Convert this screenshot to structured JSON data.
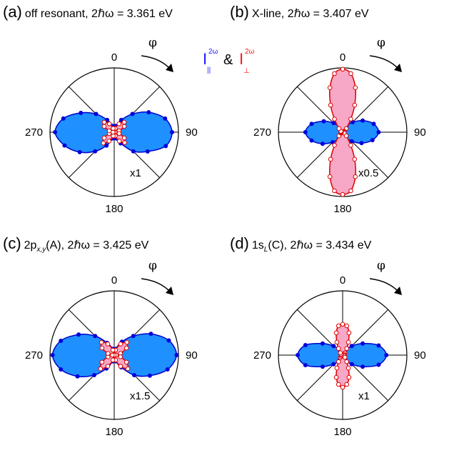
{
  "legend": {
    "par_symbol": "I",
    "par_sup": "2ω",
    "par_sub": "||",
    "amp": "&",
    "perp_symbol": "I",
    "perp_sup": "2ω",
    "perp_sub": "⊥",
    "par_color": "#1a1aff",
    "perp_color": "#ff1a1a"
  },
  "colors": {
    "parallel_fill": "#1e90ff",
    "parallel_stroke": "#0000cc",
    "parallel_point": "#0000dd",
    "perpendicular_fill": "#f7a8c6",
    "perpendicular_stroke": "#dd0000",
    "perpendicular_point_stroke": "#dd0000",
    "grid": "#000000"
  },
  "chart_data": [
    {
      "type": "polar",
      "panel": "(a)",
      "title_main": "off resonant,  2ℏω = 3.361 eV",
      "title_sub": "",
      "title_tail": "",
      "angle_ticks": [
        "0",
        "90",
        "180",
        "270"
      ],
      "phi_label": "φ",
      "scale_label": "x1",
      "rlim": [
        0,
        1
      ],
      "parallel": {
        "angles_deg": [
          0,
          15,
          30,
          45,
          60,
          75,
          90,
          105,
          120,
          135,
          150,
          165,
          180,
          195,
          210,
          225,
          240,
          255,
          270,
          285,
          300,
          315,
          330,
          345
        ],
        "values": [
          0.0,
          0.1,
          0.22,
          0.4,
          0.62,
          0.82,
          0.9,
          0.83,
          0.6,
          0.42,
          0.2,
          0.1,
          0.02,
          0.1,
          0.24,
          0.42,
          0.62,
          0.8,
          0.92,
          0.82,
          0.6,
          0.4,
          0.22,
          0.1
        ]
      },
      "perpendicular": {
        "angles_deg": [
          0,
          15,
          30,
          45,
          60,
          75,
          90,
          105,
          120,
          135,
          150,
          165,
          180,
          195,
          210,
          225,
          240,
          255,
          270,
          285,
          300,
          315,
          330,
          345
        ],
        "values": [
          0.0,
          0.06,
          0.15,
          0.22,
          0.18,
          0.08,
          0.02,
          0.08,
          0.18,
          0.23,
          0.16,
          0.06,
          0.0,
          0.06,
          0.16,
          0.24,
          0.18,
          0.08,
          0.02,
          0.08,
          0.18,
          0.22,
          0.15,
          0.06
        ]
      }
    },
    {
      "type": "polar",
      "panel": "(b)",
      "title_main": "X-line,  2ℏω = 3.407 eV",
      "title_sub": "",
      "title_tail": "",
      "angle_ticks": [
        "0",
        "90",
        "180",
        "270"
      ],
      "phi_label": "φ",
      "scale_label": "x0.5",
      "rlim": [
        0,
        1
      ],
      "parallel": {
        "angles_deg": [
          0,
          15,
          30,
          45,
          60,
          75,
          90,
          105,
          120,
          135,
          150,
          165,
          180,
          195,
          210,
          225,
          240,
          255,
          270,
          285,
          300,
          315,
          330,
          345
        ],
        "values": [
          0.0,
          0.05,
          0.12,
          0.22,
          0.36,
          0.5,
          0.56,
          0.48,
          0.34,
          0.2,
          0.1,
          0.04,
          0.0,
          0.05,
          0.12,
          0.22,
          0.36,
          0.5,
          0.58,
          0.5,
          0.34,
          0.2,
          0.1,
          0.04
        ]
      },
      "perpendicular": {
        "angles_deg": [
          0,
          8,
          16,
          24,
          32,
          45,
          60,
          75,
          90,
          105,
          120,
          135,
          148,
          156,
          164,
          172,
          180,
          188,
          196,
          204,
          212,
          225,
          240,
          255,
          270,
          285,
          300,
          315,
          328,
          336,
          344,
          352
        ],
        "values": [
          0.98,
          0.92,
          0.72,
          0.46,
          0.24,
          0.08,
          0.03,
          0.02,
          0.02,
          0.02,
          0.03,
          0.08,
          0.24,
          0.46,
          0.72,
          0.92,
          0.97,
          0.92,
          0.72,
          0.46,
          0.24,
          0.08,
          0.03,
          0.02,
          0.02,
          0.02,
          0.03,
          0.08,
          0.24,
          0.46,
          0.72,
          0.92
        ]
      }
    },
    {
      "type": "polar",
      "panel": "(c)",
      "title_main": "2p",
      "title_sub": "x,y",
      "title_tail": "(A),  2ℏω = 3.425 eV",
      "angle_ticks": [
        "0",
        "90",
        "180",
        "270"
      ],
      "phi_label": "φ",
      "scale_label": "x1.5",
      "rlim": [
        0,
        1
      ],
      "parallel": {
        "angles_deg": [
          0,
          15,
          30,
          45,
          60,
          75,
          90,
          105,
          120,
          135,
          150,
          165,
          180,
          195,
          210,
          225,
          240,
          255,
          270,
          285,
          300,
          315,
          330,
          345
        ],
        "values": [
          0.0,
          0.1,
          0.24,
          0.42,
          0.66,
          0.88,
          0.97,
          0.86,
          0.64,
          0.44,
          0.22,
          0.1,
          0.02,
          0.1,
          0.24,
          0.44,
          0.66,
          0.86,
          0.96,
          0.86,
          0.64,
          0.42,
          0.22,
          0.1
        ]
      },
      "perpendicular": {
        "angles_deg": [
          0,
          15,
          30,
          45,
          60,
          75,
          90,
          105,
          120,
          135,
          150,
          165,
          180,
          195,
          210,
          225,
          240,
          255,
          270,
          285,
          300,
          315,
          330,
          345
        ],
        "values": [
          0.0,
          0.08,
          0.2,
          0.28,
          0.22,
          0.1,
          0.03,
          0.1,
          0.22,
          0.3,
          0.2,
          0.08,
          0.0,
          0.08,
          0.2,
          0.3,
          0.22,
          0.1,
          0.03,
          0.1,
          0.22,
          0.28,
          0.2,
          0.08
        ]
      }
    },
    {
      "type": "polar",
      "panel": "(d)",
      "title_main": "1s",
      "title_sub": "L",
      "title_tail": "(C),  2ℏω = 3.434 eV",
      "angle_ticks": [
        "0",
        "90",
        "180",
        "270"
      ],
      "phi_label": "φ",
      "scale_label": "x1",
      "rlim": [
        0,
        1
      ],
      "parallel": {
        "angles_deg": [
          0,
          15,
          30,
          45,
          60,
          75,
          90,
          105,
          120,
          135,
          150,
          165,
          180,
          195,
          210,
          225,
          240,
          255,
          270,
          285,
          300,
          315,
          330,
          345
        ],
        "values": [
          0.0,
          0.04,
          0.1,
          0.2,
          0.36,
          0.58,
          0.68,
          0.58,
          0.36,
          0.2,
          0.1,
          0.04,
          0.0,
          0.04,
          0.1,
          0.2,
          0.36,
          0.6,
          0.7,
          0.6,
          0.36,
          0.2,
          0.1,
          0.04
        ]
      },
      "perpendicular": {
        "angles_deg": [
          0,
          8,
          16,
          24,
          32,
          45,
          60,
          90,
          120,
          135,
          148,
          156,
          164,
          172,
          180,
          188,
          196,
          204,
          212,
          225,
          240,
          270,
          300,
          315,
          328,
          336,
          344,
          352
        ],
        "values": [
          0.48,
          0.46,
          0.36,
          0.22,
          0.12,
          0.05,
          0.03,
          0.02,
          0.03,
          0.05,
          0.12,
          0.22,
          0.36,
          0.46,
          0.5,
          0.46,
          0.36,
          0.22,
          0.12,
          0.05,
          0.03,
          0.02,
          0.03,
          0.05,
          0.12,
          0.22,
          0.36,
          0.46
        ]
      }
    }
  ]
}
